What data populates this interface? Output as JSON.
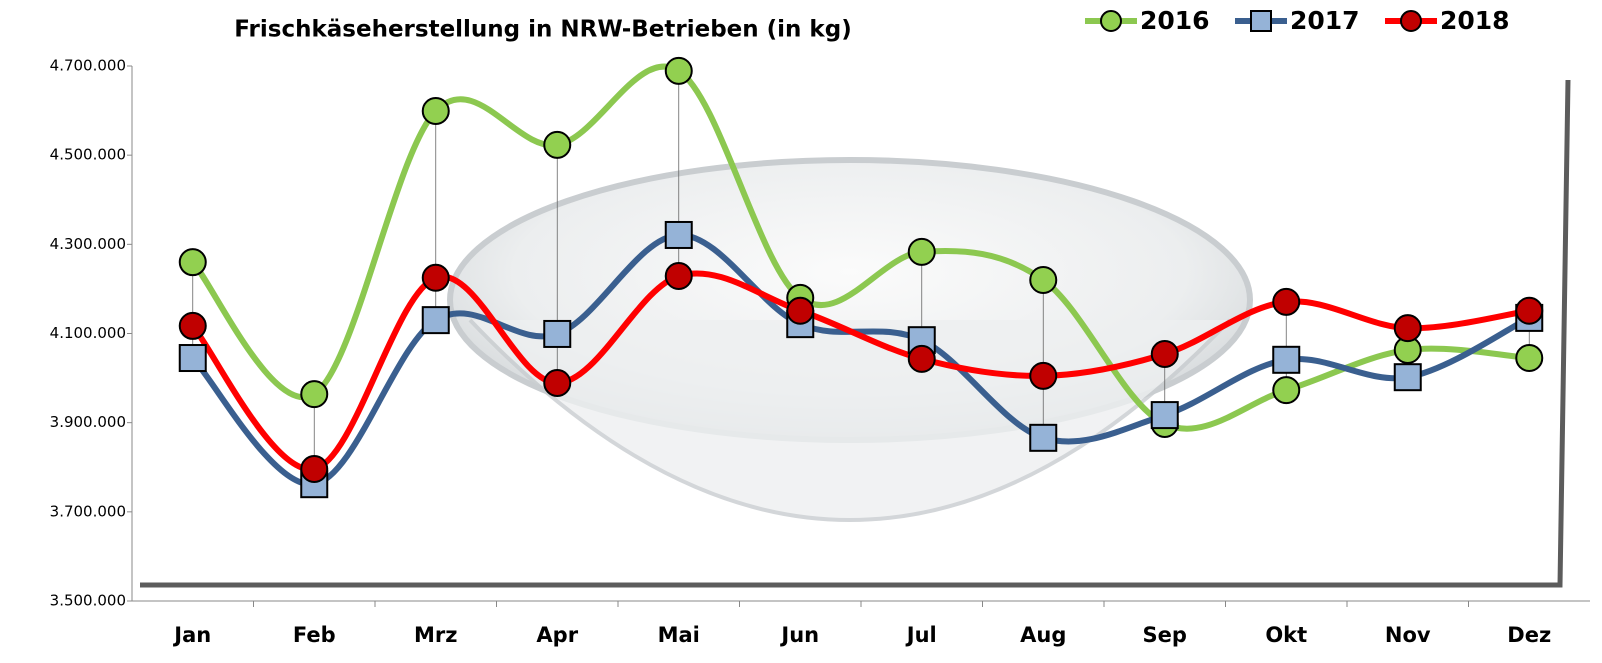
{
  "chart_data": {
    "type": "line",
    "title": "Frischkäseherstellung in NRW-Betrieben (in kg)",
    "categories": [
      "Jan",
      "Feb",
      "Mrz",
      "Apr",
      "Mai",
      "Jun",
      "Jul",
      "Aug",
      "Sep",
      "Okt",
      "Nov",
      "Dez"
    ],
    "series": [
      {
        "name": "2016",
        "color": "#8cc850",
        "marker_color": "#92d050",
        "marker": "circle",
        "values": [
          4260000,
          3964000,
          4599000,
          4523000,
          4689000,
          4180000,
          4283000,
          4220000,
          3897000,
          3973000,
          4063000,
          4045000
        ]
      },
      {
        "name": "2017",
        "color": "#3a5f8f",
        "marker_color": "#95b3d7",
        "marker": "square",
        "values": [
          4045000,
          3762000,
          4130000,
          4099000,
          4321000,
          4121000,
          4085000,
          3866000,
          3917000,
          4041000,
          4002000,
          4135000
        ]
      },
      {
        "name": "2018",
        "color": "#ff0000",
        "marker_color": "#c00000",
        "marker": "circle",
        "values": [
          4117000,
          3796000,
          4225000,
          3989000,
          4229000,
          4151000,
          4043000,
          4005000,
          4054000,
          4171000,
          4112000,
          4151000
        ]
      }
    ],
    "ylim": [
      3500000,
      4700000
    ],
    "yticks": [
      {
        "value": 3500000,
        "label": "3.500.000"
      },
      {
        "value": 3700000,
        "label": "3.700.000"
      },
      {
        "value": 3900000,
        "label": "3.900.000"
      },
      {
        "value": 4100000,
        "label": "4.100.000"
      },
      {
        "value": 4300000,
        "label": "4.300.000"
      },
      {
        "value": 4500000,
        "label": "4.500.000"
      },
      {
        "value": 4700000,
        "label": "4.700.000"
      }
    ],
    "legend": "top-right",
    "smooth": true,
    "high_low_lines": true
  }
}
